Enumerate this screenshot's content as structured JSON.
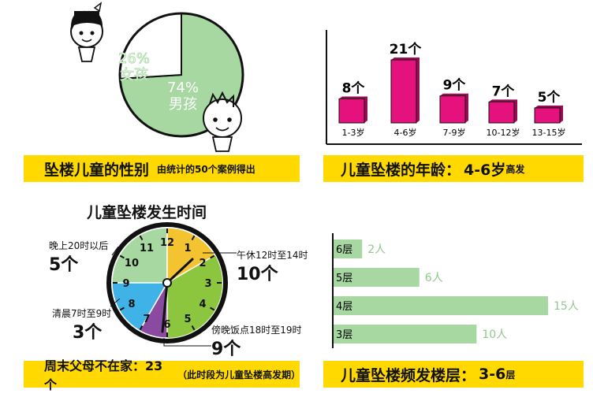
{
  "chart_data": [
    {
      "type": "pie",
      "title": "坠楼儿童的性别",
      "subtitle": "由统计的50个案例得出",
      "slices": [
        {
          "label": "女孩",
          "value": 26,
          "display": "26%",
          "color": "#ffffff"
        },
        {
          "label": "男孩",
          "value": 74,
          "display": "74%",
          "color": "#a7d8a2"
        }
      ]
    },
    {
      "type": "bar",
      "title": "儿童坠楼的年龄：",
      "highlight": "4-6岁",
      "highlight_suffix": "高发",
      "categories": [
        "1-3岁",
        "4-6岁",
        "7-9岁",
        "10-12岁",
        "13-15岁"
      ],
      "values": [
        8,
        21,
        9,
        7,
        5
      ],
      "value_labels": [
        "8个",
        "21个",
        "9个",
        "7个",
        "5个"
      ],
      "color": "#e5127d"
    },
    {
      "type": "pie",
      "title": "儿童坠楼发生时间",
      "clock_numbers": [
        "12",
        "1",
        "2",
        "3",
        "4",
        "5",
        "6",
        "7",
        "8",
        "9",
        "10",
        "11"
      ],
      "segments": [
        {
          "label": "晚上20时以后",
          "count": "5个",
          "from": 20,
          "to": 24,
          "color": "#a7d8a2"
        },
        {
          "label": "午休12时至14时",
          "count": "10个",
          "from": 12,
          "to": 14,
          "color": "#f4c430"
        },
        {
          "label": "傍晚饭点18时至19时",
          "count": "9个",
          "from": 18,
          "to": 19,
          "color": "#8a4aa0"
        },
        {
          "label": "清晨7时至9时",
          "count": "3个",
          "from": 7,
          "to": 9,
          "color": "#3fb2e8"
        }
      ],
      "footer_main": "周末父母不在家：23个",
      "footer_note": "（此时段为儿童坠楼高发期）"
    },
    {
      "type": "bar",
      "orientation": "horizontal",
      "title": "儿童坠楼频发楼层：",
      "highlight": "3-6",
      "highlight_suffix": "层",
      "categories": [
        "6层",
        "5层",
        "4层",
        "3层"
      ],
      "values": [
        2,
        6,
        15,
        10
      ],
      "value_labels": [
        "2人",
        "6人",
        "15人",
        "10人"
      ],
      "color": "#a7d8a2"
    }
  ]
}
